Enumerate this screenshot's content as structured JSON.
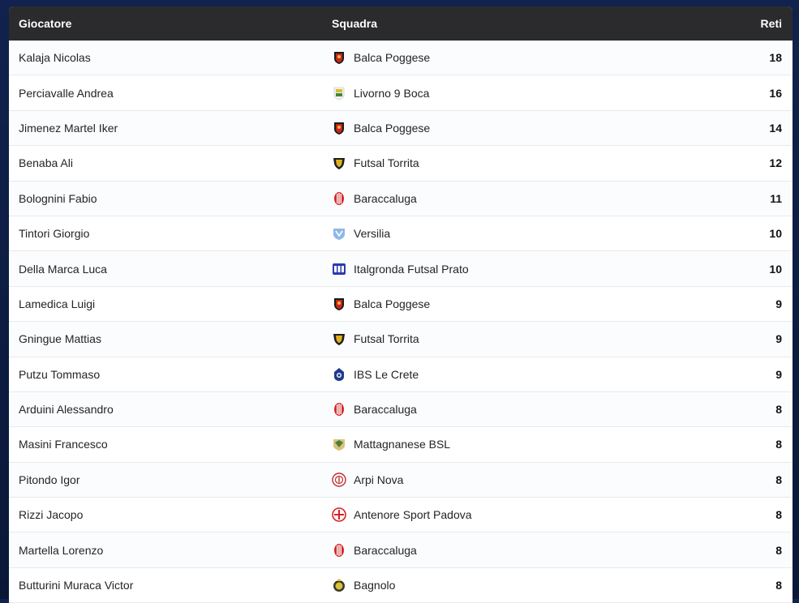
{
  "header": {
    "player": "Giocatore",
    "team": "Squadra",
    "goals": "Reti"
  },
  "rows": [
    {
      "player": "Kalaja Nicolas",
      "team": "Balca Poggese",
      "goals": "18",
      "logo": "balca",
      "colors": [
        "#c8261e",
        "#1a1a1a"
      ]
    },
    {
      "player": "Perciavalle Andrea",
      "team": "Livorno 9 Boca",
      "goals": "16",
      "logo": "livorno",
      "colors": [
        "#3a8a3a",
        "#e0b92a"
      ]
    },
    {
      "player": "Jimenez Martel Iker",
      "team": "Balca Poggese",
      "goals": "14",
      "logo": "balca",
      "colors": [
        "#c8261e",
        "#1a1a1a"
      ]
    },
    {
      "player": "Benaba Ali",
      "team": "Futsal Torrita",
      "goals": "12",
      "logo": "torrita",
      "colors": [
        "#1e1e1e",
        "#e0b020"
      ]
    },
    {
      "player": "Bolognini Fabio",
      "team": "Baraccaluga",
      "goals": "11",
      "logo": "baraccaluga",
      "colors": [
        "#d2282a",
        "#ffffff"
      ]
    },
    {
      "player": "Tintori Giorgio",
      "team": "Versilia",
      "goals": "10",
      "logo": "versilia",
      "colors": [
        "#8fb8e8",
        "#ffffff"
      ]
    },
    {
      "player": "Della Marca Luca",
      "team": "Italgronda Futsal Prato",
      "goals": "10",
      "logo": "italgronda",
      "colors": [
        "#2a3ab0",
        "#ffffff"
      ]
    },
    {
      "player": "Lamedica Luigi",
      "team": "Balca Poggese",
      "goals": "9",
      "logo": "balca",
      "colors": [
        "#c8261e",
        "#1a1a1a"
      ]
    },
    {
      "player": "Gningue Mattias",
      "team": "Futsal Torrita",
      "goals": "9",
      "logo": "torrita",
      "colors": [
        "#1e1e1e",
        "#e0b020"
      ]
    },
    {
      "player": "Putzu Tommaso",
      "team": "IBS Le Crete",
      "goals": "9",
      "logo": "ibs",
      "colors": [
        "#1f3b8c",
        "#ffffff"
      ]
    },
    {
      "player": "Arduini Alessandro",
      "team": "Baraccaluga",
      "goals": "8",
      "logo": "baraccaluga",
      "colors": [
        "#d2282a",
        "#ffffff"
      ]
    },
    {
      "player": "Masini Francesco",
      "team": "Mattagnanese BSL",
      "goals": "8",
      "logo": "mattagnanese",
      "colors": [
        "#4f7d3b",
        "#d9c27a"
      ]
    },
    {
      "player": "Pitondo Igor",
      "team": "Arpi Nova",
      "goals": "8",
      "logo": "arpi",
      "colors": [
        "#c02a32",
        "#ffffff"
      ]
    },
    {
      "player": "Rizzi Jacopo",
      "team": "Antenore Sport Padova",
      "goals": "8",
      "logo": "antenore",
      "colors": [
        "#d81e24",
        "#ffffff"
      ]
    },
    {
      "player": "Martella Lorenzo",
      "team": "Baraccaluga",
      "goals": "8",
      "logo": "baraccaluga",
      "colors": [
        "#d2282a",
        "#ffffff"
      ]
    },
    {
      "player": "Butturini Muraca Victor",
      "team": "Bagnolo",
      "goals": "8",
      "logo": "bagnolo",
      "colors": [
        "#3a3a2a",
        "#d9c23a"
      ]
    }
  ]
}
